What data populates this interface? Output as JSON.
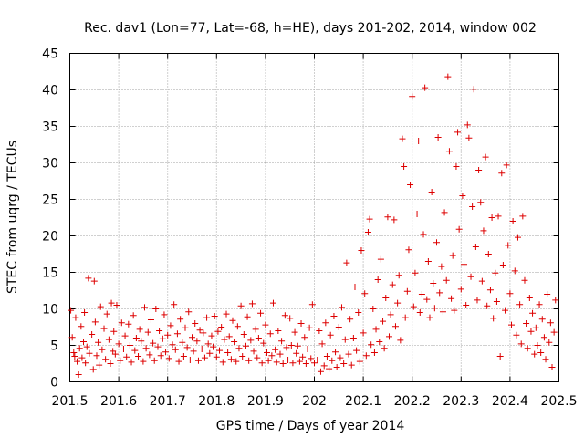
{
  "chart_data": {
    "type": "scatter",
    "title": "Rec. dav1 (Lon=77, Lat=-68, h=HE), days 201-202, 2014, window 002",
    "xlabel": "GPS time / Days of year 2014",
    "ylabel": "STEC from uqrg / TECUs",
    "xlim": [
      201.5,
      202.5
    ],
    "ylim": [
      0,
      45
    ],
    "x_ticks": [
      "201.5",
      "201.6",
      "201.7",
      "201.8",
      "201.9",
      "202",
      "202.1",
      "202.2",
      "202.3",
      "202.4",
      "202.5"
    ],
    "y_ticks": [
      "0",
      "5",
      "10",
      "15",
      "20",
      "25",
      "30",
      "35",
      "40",
      "45"
    ],
    "grid": true,
    "marker": "+",
    "color": "#dd0000",
    "series": [
      {
        "name": "",
        "points": [
          [
            201.502,
            9.8
          ],
          [
            201.505,
            6.1
          ],
          [
            201.508,
            4.0
          ],
          [
            201.51,
            3.5
          ],
          [
            201.512,
            8.8
          ],
          [
            201.515,
            2.8
          ],
          [
            201.518,
            1.0
          ],
          [
            201.52,
            4.6
          ],
          [
            201.523,
            7.6
          ],
          [
            201.525,
            3.3
          ],
          [
            201.528,
            5.5
          ],
          [
            201.53,
            9.5
          ],
          [
            201.532,
            2.6
          ],
          [
            201.535,
            4.8
          ],
          [
            201.538,
            14.2
          ],
          [
            201.54,
            3.9
          ],
          [
            201.545,
            6.5
          ],
          [
            201.548,
            1.7
          ],
          [
            201.55,
            13.8
          ],
          [
            201.552,
            8.2
          ],
          [
            201.555,
            3.6
          ],
          [
            201.558,
            5.4
          ],
          [
            201.56,
            2.3
          ],
          [
            201.563,
            10.3
          ],
          [
            201.566,
            4.4
          ],
          [
            201.57,
            7.3
          ],
          [
            201.573,
            3.1
          ],
          [
            201.576,
            9.3
          ],
          [
            201.58,
            5.8
          ],
          [
            201.583,
            2.5
          ],
          [
            201.585,
            10.8
          ],
          [
            201.588,
            4.2
          ],
          [
            201.59,
            6.9
          ],
          [
            201.593,
            3.8
          ],
          [
            201.596,
            10.5
          ],
          [
            201.6,
            5.2
          ],
          [
            201.603,
            2.9
          ],
          [
            201.606,
            8.1
          ],
          [
            201.61,
            4.5
          ],
          [
            201.613,
            6.3
          ],
          [
            201.616,
            3.4
          ],
          [
            201.62,
            7.9
          ],
          [
            201.623,
            5.0
          ],
          [
            201.626,
            2.7
          ],
          [
            201.63,
            9.1
          ],
          [
            201.633,
            4.3
          ],
          [
            201.636,
            6.0
          ],
          [
            201.64,
            3.5
          ],
          [
            201.643,
            7.2
          ],
          [
            201.646,
            5.6
          ],
          [
            201.65,
            2.8
          ],
          [
            201.653,
            10.2
          ],
          [
            201.656,
            4.6
          ],
          [
            201.66,
            6.8
          ],
          [
            201.663,
            3.7
          ],
          [
            201.666,
            8.5
          ],
          [
            201.67,
            5.3
          ],
          [
            201.673,
            2.9
          ],
          [
            201.676,
            10.0
          ],
          [
            201.68,
            4.8
          ],
          [
            201.683,
            7.0
          ],
          [
            201.686,
            3.6
          ],
          [
            201.69,
            5.9
          ],
          [
            201.693,
            9.2
          ],
          [
            201.696,
            4.1
          ],
          [
            201.7,
            6.4
          ],
          [
            201.703,
            3.2
          ],
          [
            201.706,
            7.7
          ],
          [
            201.71,
            5.1
          ],
          [
            201.713,
            10.6
          ],
          [
            201.716,
            4.4
          ],
          [
            201.72,
            6.6
          ],
          [
            201.723,
            2.8
          ],
          [
            201.726,
            8.6
          ],
          [
            201.73,
            5.4
          ],
          [
            201.733,
            3.5
          ],
          [
            201.736,
            7.4
          ],
          [
            201.74,
            4.7
          ],
          [
            201.743,
            9.6
          ],
          [
            201.746,
            3.0
          ],
          [
            201.75,
            6.1
          ],
          [
            201.753,
            4.2
          ],
          [
            201.756,
            8.0
          ],
          [
            201.76,
            5.6
          ],
          [
            201.763,
            2.9
          ],
          [
            201.766,
            7.1
          ],
          [
            201.77,
            4.5
          ],
          [
            201.773,
            6.7
          ],
          [
            201.776,
            3.3
          ],
          [
            201.78,
            8.8
          ],
          [
            201.783,
            5.2
          ],
          [
            201.786,
            3.9
          ],
          [
            201.79,
            6.3
          ],
          [
            201.793,
            4.8
          ],
          [
            201.796,
            9.0
          ],
          [
            201.8,
            3.4
          ],
          [
            201.803,
            6.9
          ],
          [
            201.806,
            4.3
          ],
          [
            201.81,
            7.5
          ],
          [
            201.813,
            2.7
          ],
          [
            201.816,
            5.8
          ],
          [
            201.82,
            9.3
          ],
          [
            201.823,
            4.0
          ],
          [
            201.826,
            6.2
          ],
          [
            201.83,
            3.1
          ],
          [
            201.833,
            8.4
          ],
          [
            201.836,
            5.5
          ],
          [
            201.84,
            2.8
          ],
          [
            201.843,
            7.6
          ],
          [
            201.846,
            4.6
          ],
          [
            201.85,
            10.4
          ],
          [
            201.853,
            3.5
          ],
          [
            201.856,
            6.5
          ],
          [
            201.86,
            4.9
          ],
          [
            201.863,
            8.9
          ],
          [
            201.866,
            2.9
          ],
          [
            201.87,
            5.7
          ],
          [
            201.873,
            10.7
          ],
          [
            201.876,
            4.2
          ],
          [
            201.88,
            7.2
          ],
          [
            201.883,
            3.3
          ],
          [
            201.886,
            6.0
          ],
          [
            201.89,
            9.4
          ],
          [
            201.893,
            2.6
          ],
          [
            201.896,
            5.3
          ],
          [
            201.9,
            7.8
          ],
          [
            201.903,
            4.0
          ],
          [
            201.906,
            2.9
          ],
          [
            201.91,
            6.6
          ],
          [
            201.913,
            3.6
          ],
          [
            201.916,
            10.8
          ],
          [
            201.92,
            4.4
          ],
          [
            201.923,
            2.7
          ],
          [
            201.926,
            7.0
          ],
          [
            201.93,
            3.8
          ],
          [
            201.933,
            5.6
          ],
          [
            201.936,
            2.5
          ],
          [
            201.94,
            9.1
          ],
          [
            201.943,
            4.7
          ],
          [
            201.946,
            3.0
          ],
          [
            201.95,
            8.7
          ],
          [
            201.953,
            5.0
          ],
          [
            201.956,
            2.6
          ],
          [
            201.96,
            6.8
          ],
          [
            201.963,
            3.9
          ],
          [
            201.966,
            4.9
          ],
          [
            201.97,
            2.8
          ],
          [
            201.973,
            8.0
          ],
          [
            201.976,
            3.4
          ],
          [
            201.98,
            6.1
          ],
          [
            201.983,
            2.5
          ],
          [
            201.986,
            4.5
          ],
          [
            201.99,
            7.4
          ],
          [
            201.993,
            3.2
          ],
          [
            201.996,
            10.6
          ],
          [
            202.0,
            2.6
          ],
          [
            202.006,
            3.0
          ],
          [
            202.01,
            7.0
          ],
          [
            202.013,
            1.4
          ],
          [
            202.016,
            5.2
          ],
          [
            202.02,
            2.2
          ],
          [
            202.023,
            8.1
          ],
          [
            202.026,
            3.5
          ],
          [
            202.03,
            1.8
          ],
          [
            202.033,
            6.4
          ],
          [
            202.036,
            2.9
          ],
          [
            202.04,
            9.0
          ],
          [
            202.043,
            4.1
          ],
          [
            202.046,
            2.0
          ],
          [
            202.05,
            7.5
          ],
          [
            202.053,
            3.3
          ],
          [
            202.056,
            10.2
          ],
          [
            202.06,
            2.5
          ],
          [
            202.063,
            5.8
          ],
          [
            202.066,
            16.3
          ],
          [
            202.07,
            3.8
          ],
          [
            202.073,
            8.6
          ],
          [
            202.076,
            2.3
          ],
          [
            202.08,
            6.0
          ],
          [
            202.083,
            13.0
          ],
          [
            202.086,
            4.3
          ],
          [
            202.09,
            9.5
          ],
          [
            202.093,
            2.8
          ],
          [
            202.096,
            18.0
          ],
          [
            202.1,
            6.7
          ],
          [
            202.103,
            12.1
          ],
          [
            202.106,
            3.6
          ],
          [
            202.11,
            20.5
          ],
          [
            202.113,
            22.3
          ],
          [
            202.116,
            5.1
          ],
          [
            202.12,
            10.0
          ],
          [
            202.123,
            4.0
          ],
          [
            202.126,
            7.2
          ],
          [
            202.13,
            14.0
          ],
          [
            202.133,
            5.5
          ],
          [
            202.136,
            16.8
          ],
          [
            202.14,
            8.3
          ],
          [
            202.143,
            4.6
          ],
          [
            202.146,
            11.5
          ],
          [
            202.15,
            22.6
          ],
          [
            202.153,
            6.2
          ],
          [
            202.156,
            9.2
          ],
          [
            202.16,
            13.3
          ],
          [
            202.163,
            22.2
          ],
          [
            202.166,
            7.6
          ],
          [
            202.17,
            10.8
          ],
          [
            202.173,
            14.6
          ],
          [
            202.176,
            5.7
          ],
          [
            202.18,
            33.3
          ],
          [
            202.183,
            29.5
          ],
          [
            202.186,
            8.8
          ],
          [
            202.19,
            12.4
          ],
          [
            202.193,
            18.1
          ],
          [
            202.196,
            27.0
          ],
          [
            202.2,
            39.1
          ],
          [
            202.203,
            10.3
          ],
          [
            202.206,
            14.9
          ],
          [
            202.21,
            23.0
          ],
          [
            202.213,
            33.0
          ],
          [
            202.216,
            9.5
          ],
          [
            202.22,
            12.0
          ],
          [
            202.223,
            20.2
          ],
          [
            202.226,
            40.3
          ],
          [
            202.23,
            11.3
          ],
          [
            202.233,
            16.5
          ],
          [
            202.236,
            8.8
          ],
          [
            202.24,
            26.0
          ],
          [
            202.243,
            13.5
          ],
          [
            202.246,
            10.1
          ],
          [
            202.25,
            19.1
          ],
          [
            202.253,
            33.5
          ],
          [
            202.256,
            12.2
          ],
          [
            202.26,
            15.8
          ],
          [
            202.263,
            9.6
          ],
          [
            202.266,
            23.2
          ],
          [
            202.27,
            13.9
          ],
          [
            202.273,
            41.8
          ],
          [
            202.276,
            31.6
          ],
          [
            202.28,
            11.4
          ],
          [
            202.283,
            17.3
          ],
          [
            202.286,
            9.8
          ],
          [
            202.29,
            29.5
          ],
          [
            202.293,
            34.2
          ],
          [
            202.296,
            20.9
          ],
          [
            202.3,
            12.7
          ],
          [
            202.303,
            25.5
          ],
          [
            202.306,
            16.1
          ],
          [
            202.31,
            10.5
          ],
          [
            202.313,
            35.2
          ],
          [
            202.316,
            33.4
          ],
          [
            202.32,
            14.4
          ],
          [
            202.323,
            24.0
          ],
          [
            202.326,
            40.1
          ],
          [
            202.33,
            18.5
          ],
          [
            202.333,
            11.2
          ],
          [
            202.336,
            29.0
          ],
          [
            202.34,
            24.6
          ],
          [
            202.343,
            13.8
          ],
          [
            202.346,
            20.7
          ],
          [
            202.35,
            30.8
          ],
          [
            202.353,
            10.4
          ],
          [
            202.356,
            17.5
          ],
          [
            202.36,
            12.6
          ],
          [
            202.363,
            22.5
          ],
          [
            202.366,
            8.7
          ],
          [
            202.37,
            14.9
          ],
          [
            202.373,
            11.0
          ],
          [
            202.376,
            22.7
          ],
          [
            202.38,
            3.5
          ],
          [
            202.383,
            28.6
          ],
          [
            202.386,
            16.0
          ],
          [
            202.39,
            9.8
          ],
          [
            202.393,
            29.7
          ],
          [
            202.396,
            18.7
          ],
          [
            202.4,
            12.1
          ],
          [
            202.403,
            7.8
          ],
          [
            202.406,
            22.0
          ],
          [
            202.41,
            15.2
          ],
          [
            202.413,
            6.4
          ],
          [
            202.416,
            19.8
          ],
          [
            202.42,
            10.6
          ],
          [
            202.423,
            5.2
          ],
          [
            202.426,
            22.7
          ],
          [
            202.43,
            13.9
          ],
          [
            202.433,
            8.0
          ],
          [
            202.436,
            4.6
          ],
          [
            202.44,
            11.5
          ],
          [
            202.443,
            6.9
          ],
          [
            202.446,
            9.4
          ],
          [
            202.45,
            3.8
          ],
          [
            202.453,
            7.4
          ],
          [
            202.456,
            5.0
          ],
          [
            202.46,
            10.6
          ],
          [
            202.463,
            4.0
          ],
          [
            202.466,
            8.6
          ],
          [
            202.47,
            6.1
          ],
          [
            202.473,
            3.1
          ],
          [
            202.476,
            12.0
          ],
          [
            202.48,
            5.4
          ],
          [
            202.483,
            8.1
          ],
          [
            202.486,
            2.0
          ],
          [
            202.49,
            6.8
          ],
          [
            202.493,
            11.2
          ]
        ]
      }
    ]
  }
}
